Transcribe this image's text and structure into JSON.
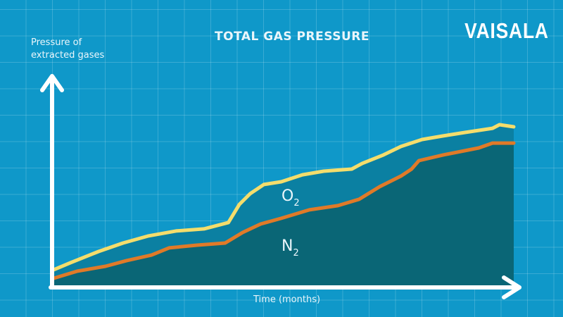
{
  "brand": {
    "logo": "VAISALA"
  },
  "chart_data": {
    "type": "area",
    "title": "TOTAL GAS PRESSURE",
    "ylabel": "Pressure of extracted gases",
    "xlabel": "Time (months)",
    "xlim": [
      0,
      100
    ],
    "ylim": [
      0,
      100
    ],
    "grid": true,
    "legend": "inline labels",
    "series": [
      {
        "name": "O2",
        "label_main": "O",
        "label_sub": "2",
        "color": "#f4dd6c",
        "fill": "#0b80a2",
        "x": [
          0,
          3.7,
          9.8,
          15.1,
          20.5,
          26.6,
          32.7,
          38,
          40.4,
          42.7,
          45.7,
          49.5,
          54.1,
          58.7,
          64.8,
          67.1,
          71.7,
          75.5,
          80.1,
          84.7,
          89.3,
          95.4,
          96.9,
          100
        ],
        "y": [
          7.3,
          10.7,
          16,
          20,
          23.3,
          25.7,
          26.7,
          29.7,
          38.3,
          43.3,
          47.7,
          49,
          52.3,
          54,
          55,
          57.7,
          61.7,
          65.7,
          69,
          70.7,
          72.3,
          74.3,
          76,
          75
        ]
      },
      {
        "name": "N2",
        "label_main": "N",
        "label_sub": "2",
        "color": "#e07a28",
        "fill": "#0a6676",
        "x": [
          0,
          5.2,
          11.3,
          15.9,
          21.3,
          25.1,
          31.2,
          37.3,
          41.1,
          45,
          49.5,
          55.6,
          61.8,
          66.4,
          70.9,
          75.5,
          77.8,
          79.4,
          84.7,
          92.4,
          95.4,
          100
        ],
        "y": [
          3.3,
          6.7,
          9,
          11.7,
          14.3,
          17.7,
          19,
          20,
          25,
          29,
          31.7,
          35.7,
          37.7,
          40.7,
          46.7,
          51.7,
          55,
          59,
          61.7,
          65,
          67.3,
          67.3
        ]
      }
    ]
  }
}
